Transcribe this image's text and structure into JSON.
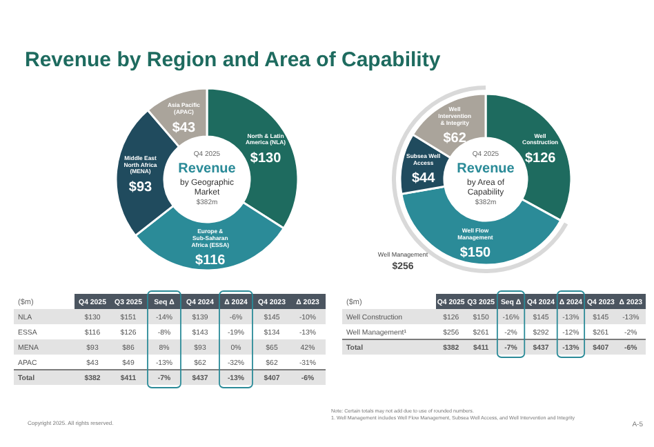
{
  "chart_data": [
    {
      "type": "other",
      "title": "Revenue by Region and Area of Capability",
      "annotations": [
        "Copyright 2025. All rights reserved.",
        "Note:   Certain totals may not add due to use of rounded numbers.",
        "1.      Well Management includes Well Flow Management, Subsea Well Access, and Well Intervention and Integrity",
        "A-5"
      ]
    },
    {
      "type": "donut",
      "subtitle": "Q4 2025",
      "title": "Revenue by Geographic Market",
      "annotations": [
        "$382m"
      ],
      "categories": [
        "North & Latin America (NLA)",
        "Europe & Sub-Saharan Africa (ESSA)",
        "Middle East North Africa (MENA)",
        "Asia Pacific (APAC)"
      ],
      "values": [
        130,
        116,
        93,
        43
      ],
      "value_labels": [
        "$130",
        "$116",
        "$93",
        "$43"
      ],
      "colors": [
        "#1e6b5f",
        "#2b8b98",
        "#204b5e",
        "#aaa49b"
      ]
    },
    {
      "type": "donut",
      "subtitle": "Q4 2025",
      "title": "Revenue by Area of Capability",
      "annotations": [
        "$382m",
        "Well Management",
        "$256"
      ],
      "categories": [
        "Well Construction",
        "Well Flow Management",
        "Subsea Well Access",
        "Well Intervention & Integrity"
      ],
      "values": [
        126,
        150,
        44,
        62
      ],
      "value_labels": [
        "$126",
        "$150",
        "$44",
        "$62"
      ],
      "colors": [
        "#1e6b5f",
        "#2b8b98",
        "#204b5e",
        "#aaa49b"
      ]
    },
    {
      "type": "other",
      "legend_title": "($m)",
      "categories": [
        "NLA",
        "ESSA",
        "MENA",
        "APAC",
        "Total"
      ],
      "series": [
        {
          "name": "Q4 2025",
          "values": [
            130,
            116,
            93,
            43,
            382
          ],
          "value_labels": [
            "$130",
            "$116",
            "$93",
            "$43",
            "$382"
          ]
        },
        {
          "name": "Q3 2025",
          "values": [
            151,
            126,
            86,
            49,
            411
          ],
          "value_labels": [
            "$151",
            "$126",
            "$86",
            "$49",
            "$411"
          ]
        },
        {
          "name": "Seq Δ",
          "values": [
            -14,
            -8,
            8,
            -13,
            -7
          ],
          "value_labels": [
            "-14%",
            "-8%",
            "8%",
            "-13%",
            "-7%"
          ]
        },
        {
          "name": "Q4 2024",
          "values": [
            139,
            143,
            93,
            62,
            437
          ],
          "value_labels": [
            "$139",
            "$143",
            "$93",
            "$62",
            "$437"
          ]
        },
        {
          "name": "Δ 2024",
          "values": [
            -6,
            -19,
            0,
            -32,
            -13
          ],
          "value_labels": [
            "-6%",
            "-19%",
            "0%",
            "-32%",
            "-13%"
          ]
        },
        {
          "name": "Q4 2023",
          "values": [
            145,
            134,
            65,
            62,
            407
          ],
          "value_labels": [
            "$145",
            "$134",
            "$65",
            "$62",
            "$407"
          ]
        },
        {
          "name": "Δ 2023",
          "values": [
            -10,
            -13,
            42,
            -31,
            -6
          ],
          "value_labels": [
            "-10%",
            "-13%",
            "42%",
            "-31%",
            "-6%"
          ]
        }
      ]
    },
    {
      "type": "other",
      "legend_title": "($m)",
      "categories": [
        "Well Construction",
        "Well Management¹",
        "Total"
      ],
      "series": [
        {
          "name": "Q4 2025",
          "values": [
            126,
            256,
            382
          ],
          "value_labels": [
            "$126",
            "$256",
            "$382"
          ]
        },
        {
          "name": "Q3 2025",
          "values": [
            150,
            261,
            411
          ],
          "value_labels": [
            "$150",
            "$261",
            "$411"
          ]
        },
        {
          "name": "Seq Δ",
          "values": [
            -16,
            -2,
            -7
          ],
          "value_labels": [
            "-16%",
            "-2%",
            "-7%"
          ]
        },
        {
          "name": "Q4 2024",
          "values": [
            145,
            292,
            437
          ],
          "value_labels": [
            "$145",
            "$292",
            "$437"
          ]
        },
        {
          "name": "Δ 2024",
          "values": [
            -13,
            -12,
            -13
          ],
          "value_labels": [
            "-13%",
            "-12%",
            "-13%"
          ]
        },
        {
          "name": "Q4 2023",
          "values": [
            145,
            261,
            407
          ],
          "value_labels": [
            "$145",
            "$261",
            "$407"
          ]
        },
        {
          "name": "Δ 2023",
          "values": [
            -13,
            -2,
            -6
          ],
          "value_labels": [
            "-13%",
            "-2%",
            "-6%"
          ]
        }
      ]
    }
  ]
}
